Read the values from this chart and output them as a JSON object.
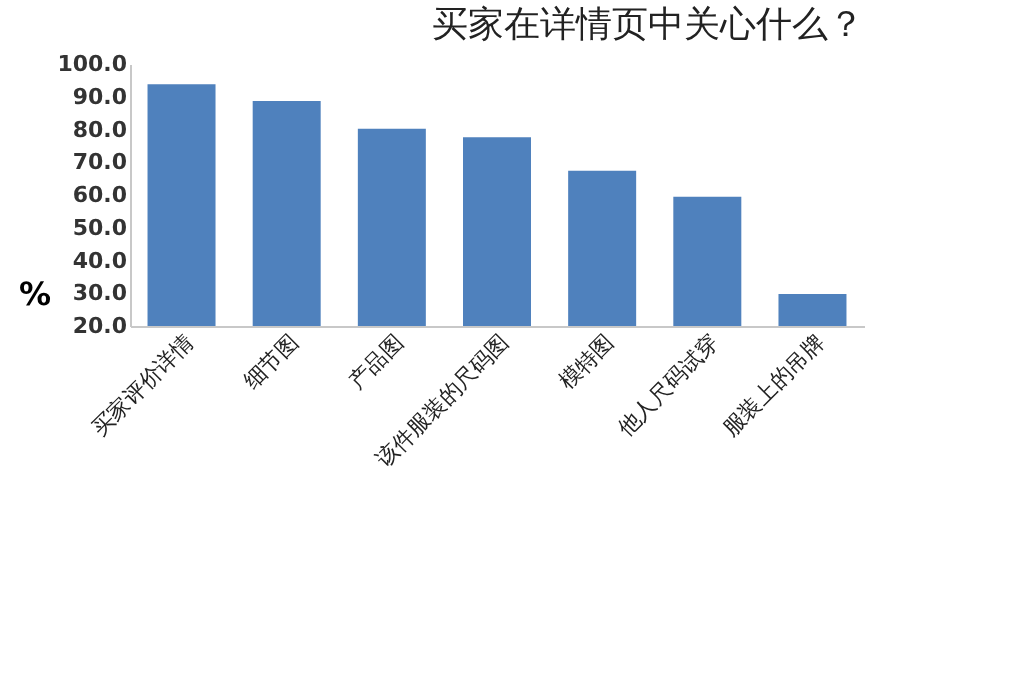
{
  "chart_data": {
    "type": "bar",
    "title": "买家在详情页中关心什么？",
    "ylabel": "%",
    "categories": [
      "买家评价详情",
      "细节图",
      "产品图",
      "该件服装的尺码图",
      "模特图",
      "他人尺码试穿",
      "服装上的吊牌"
    ],
    "values": [
      93.8,
      88.7,
      80.2,
      77.6,
      67.4,
      59.5,
      29.8
    ],
    "color": "#4f81bd",
    "ylim": [
      20,
      100
    ],
    "yticks": [
      {
        "value": 20,
        "label": "20.0"
      },
      {
        "value": 30,
        "label": "30.0"
      },
      {
        "value": 40,
        "label": "40.0"
      },
      {
        "value": 50,
        "label": "50.0"
      },
      {
        "value": 60,
        "label": "60.0"
      },
      {
        "value": 70,
        "label": "70.0"
      },
      {
        "value": 80,
        "label": "80.0"
      },
      {
        "value": 90,
        "label": "90.0"
      },
      {
        "value": 100,
        "label": "100.0"
      }
    ],
    "grid": false
  }
}
